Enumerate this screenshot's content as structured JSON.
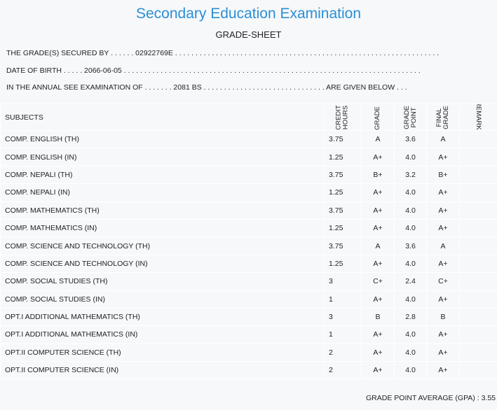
{
  "header": {
    "title": "Secondary Education Examination",
    "subtitle": "GRADE-SHEET"
  },
  "info": [
    "THE GRADE(S) SECURED BY . . . . . . 02922769E . . . . . . . . . . . . . . . . . . . . . . . . . . . . . . . . . . . . . . . . . . . . . . . . . . . . . . . . . . . . . . . . .",
    "DATE OF BIRTH . . . . . 2066-06-05 . . . . . . . . . . . . . . . . . . . . . . . . . . . . . . . . . . . . . . . . . . . . . . . . . . . . . . . . . . . . . . . . . . . . . . . . .",
    "IN THE ANNUAL SEE EXAMINATION OF . . . . . . . 2081 BS . . . . . . . . . . . . . . . . . . . . . . . . . . . . . . ARE GIVEN BELOW . . ."
  ],
  "table": {
    "columns": [
      "SUBJECTS",
      [
        "CREDIT",
        "HOURS"
      ],
      [
        "GRADE"
      ],
      [
        "GRADE",
        "POINT"
      ],
      [
        "FINAL",
        "GRADE"
      ],
      "REMARKS"
    ],
    "rows": [
      [
        "COMP. ENGLISH (TH)",
        "3.75",
        "A",
        "3.6",
        "A"
      ],
      [
        "COMP. ENGLISH (IN)",
        "1.25",
        "A+",
        "4.0",
        "A+"
      ],
      [
        "COMP. NEPALI (TH)",
        "3.75",
        "B+",
        "3.2",
        "B+"
      ],
      [
        "COMP. NEPALI (IN)",
        "1.25",
        "A+",
        "4.0",
        "A+"
      ],
      [
        "COMP. MATHEMATICS (TH)",
        "3.75",
        "A+",
        "4.0",
        "A+"
      ],
      [
        "COMP. MATHEMATICS (IN)",
        "1.25",
        "A+",
        "4.0",
        "A+"
      ],
      [
        "COMP. SCIENCE AND TECHNOLOGY (TH)",
        "3.75",
        "A",
        "3.6",
        "A"
      ],
      [
        "COMP. SCIENCE AND TECHNOLOGY (IN)",
        "1.25",
        "A+",
        "4.0",
        "A+"
      ],
      [
        "COMP. SOCIAL STUDIES (TH)",
        "3",
        "C+",
        "2.4",
        "C+"
      ],
      [
        "COMP. SOCIAL STUDIES (IN)",
        "1",
        "A+",
        "4.0",
        "A+"
      ],
      [
        "OPT.I ADDITIONAL MATHEMATICS (TH)",
        "3",
        "B",
        "2.8",
        "B"
      ],
      [
        "OPT.I ADDITIONAL MATHEMATICS (IN)",
        "1",
        "A+",
        "4.0",
        "A+"
      ],
      [
        "OPT.II COMPUTER SCIENCE (TH)",
        "2",
        "A+",
        "4.0",
        "A+"
      ],
      [
        "OPT.II COMPUTER SCIENCE (IN)",
        "2",
        "A+",
        "4.0",
        "A+"
      ]
    ]
  },
  "footer": {
    "label": "GRADE POINT AVERAGE (GPA) :",
    "value": "3.55"
  }
}
